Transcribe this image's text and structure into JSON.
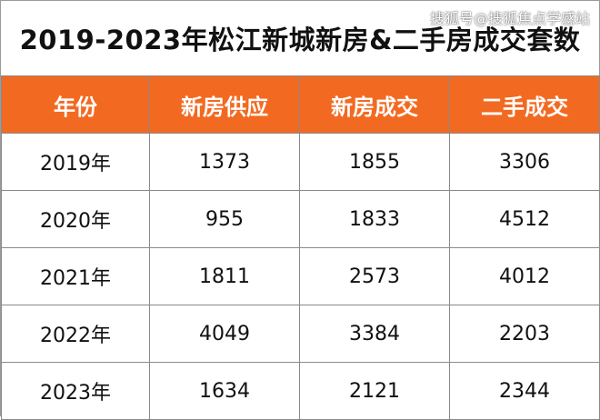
{
  "title": "2019-2023年松江新城新房&二手房成交套数",
  "watermark": "搜狐号@搜狐焦点学感站",
  "colors": {
    "header_bg": "#f26a21",
    "header_text": "#ffffff",
    "border": "#8a8a8a"
  },
  "table": {
    "headers": [
      "年份",
      "新房供应",
      "新房成交",
      "二手成交"
    ],
    "rows": [
      [
        "2019年",
        "1373",
        "1855",
        "3306"
      ],
      [
        "2020年",
        "955",
        "1833",
        "4512"
      ],
      [
        "2021年",
        "1811",
        "2573",
        "4012"
      ],
      [
        "2022年",
        "4049",
        "3384",
        "2203"
      ],
      [
        "2023年",
        "1634",
        "2121",
        "2344"
      ]
    ]
  }
}
